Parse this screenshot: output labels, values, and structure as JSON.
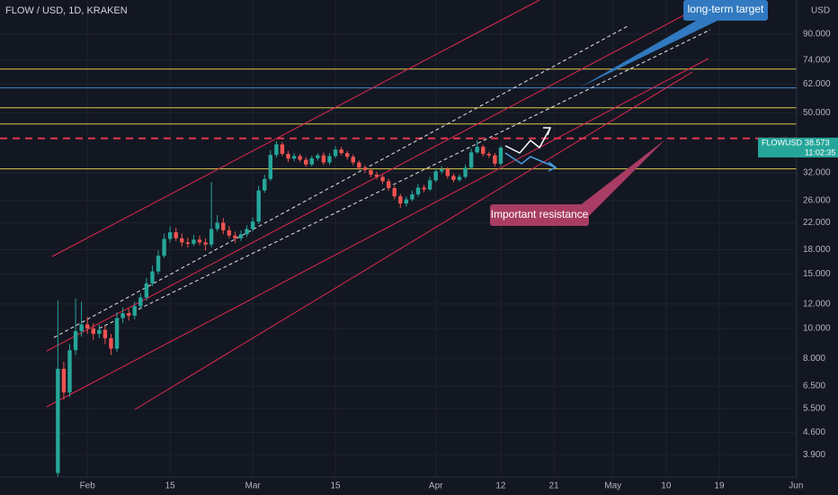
{
  "chart_data": {
    "type": "candlestick",
    "title": "FLOW / USD, 1D, KRAKEN",
    "currency": "USD",
    "symbol": "FLOWUSD",
    "last_price": 38.573,
    "countdown": "11:02:35",
    "log_scale": true,
    "grid": true,
    "up_color": "#26a69a",
    "down_color": "#ef5350",
    "xlim": [
      17.2,
      152.1
    ],
    "ylim": [
      3.3,
      116
    ],
    "xticks": [
      {
        "value": 32,
        "label": "Feb"
      },
      {
        "value": 46,
        "label": "15"
      },
      {
        "value": 60,
        "label": "Mar"
      },
      {
        "value": 74,
        "label": "15"
      },
      {
        "value": 91,
        "label": "Apr"
      },
      {
        "value": 102,
        "label": "12"
      },
      {
        "value": 111,
        "label": "21"
      },
      {
        "value": 121,
        "label": "May"
      },
      {
        "value": 130,
        "label": "10"
      },
      {
        "value": 139,
        "label": "19"
      },
      {
        "value": 152,
        "label": "Jun"
      }
    ],
    "yticks": [
      {
        "value": 90,
        "label": "90.000"
      },
      {
        "value": 74,
        "label": "74.000"
      },
      {
        "value": 62,
        "label": "62.000"
      },
      {
        "value": 50,
        "label": "50.000"
      },
      {
        "value": 32,
        "label": "32.000"
      },
      {
        "value": 26,
        "label": "26.000"
      },
      {
        "value": 22,
        "label": "22.000"
      },
      {
        "value": 18,
        "label": "18.000"
      },
      {
        "value": 15,
        "label": "15.000"
      },
      {
        "value": 12,
        "label": "12.000"
      },
      {
        "value": 10,
        "label": "10.000"
      },
      {
        "value": 8,
        "label": "8.000"
      },
      {
        "value": 6.5,
        "label": "6.500"
      },
      {
        "value": 5.5,
        "label": "5.500"
      },
      {
        "value": 4.6,
        "label": "4.600"
      },
      {
        "value": 3.9,
        "label": "3.900"
      }
    ],
    "x": [
      27,
      28,
      29,
      30,
      31,
      32,
      33,
      34,
      35,
      36,
      37,
      38,
      39,
      40,
      41,
      42,
      43,
      44,
      45,
      46,
      47,
      48,
      49,
      50,
      51,
      52,
      53,
      54,
      55,
      56,
      57,
      58,
      59,
      60,
      61,
      62,
      63,
      64,
      65,
      66,
      67,
      68,
      69,
      70,
      71,
      72,
      73,
      74,
      75,
      76,
      77,
      78,
      79,
      80,
      81,
      82,
      83,
      84,
      85,
      86,
      87,
      88,
      89,
      90,
      91,
      92,
      93,
      94,
      95,
      96,
      97,
      98,
      99,
      100,
      101,
      102
    ],
    "open": [
      3.4,
      7.4,
      6.2,
      8.5,
      9.8,
      10.3,
      10.0,
      9.6,
      9.9,
      9.3,
      8.6,
      10.8,
      11.2,
      11.0,
      11.8,
      12.6,
      14.0,
      15.3,
      17.2,
      19.5,
      20.5,
      19.6,
      19.0,
      18.8,
      19.4,
      19.0,
      18.7,
      21.0,
      22.0,
      20.8,
      20.0,
      19.6,
      20.2,
      21.0,
      22.2,
      28.0,
      30.5,
      36.5,
      39.5,
      36.8,
      35.5,
      36.2,
      35.2,
      34.0,
      35.6,
      36.4,
      34.5,
      36.2,
      38.0,
      37.0,
      36.0,
      34.5,
      33.2,
      32.6,
      31.5,
      31.0,
      30.0,
      28.5,
      26.8,
      25.4,
      26.2,
      27.2,
      28.6,
      28.2,
      30.2,
      32.3,
      32.8,
      31.2,
      30.3,
      31.0,
      33.2,
      37.2,
      38.8,
      36.8,
      36.4,
      34.2
    ],
    "high": [
      12.3,
      7.8,
      8.9,
      12.5,
      12.2,
      10.9,
      10.4,
      10.3,
      10.2,
      9.6,
      11.3,
      11.7,
      11.6,
      12.2,
      13.0,
      14.6,
      16.0,
      17.9,
      20.3,
      21.4,
      21.2,
      20.3,
      19.7,
      20.1,
      20.0,
      19.6,
      29.8,
      23.3,
      22.8,
      21.5,
      20.6,
      20.8,
      21.6,
      22.9,
      29.0,
      31.5,
      37.8,
      40.5,
      40.2,
      37.6,
      37.0,
      36.8,
      35.9,
      36.3,
      37.0,
      37.2,
      37.0,
      39.0,
      38.8,
      37.6,
      36.6,
      35.0,
      33.8,
      33.0,
      32.2,
      31.5,
      30.6,
      29.0,
      27.3,
      26.8,
      28.0,
      29.4,
      29.2,
      31.0,
      33.0,
      33.6,
      33.3,
      31.8,
      31.6,
      34.0,
      38.2,
      40.8,
      39.4,
      37.4,
      37.0,
      39.0
    ],
    "low": [
      3.3,
      5.9,
      6.0,
      8.2,
      9.4,
      9.6,
      9.2,
      9.3,
      8.9,
      8.2,
      8.4,
      10.4,
      10.6,
      10.7,
      11.5,
      12.3,
      13.7,
      15.0,
      16.9,
      19.0,
      19.2,
      18.4,
      18.3,
      18.5,
      18.6,
      17.9,
      18.3,
      20.6,
      20.2,
      19.6,
      18.9,
      19.2,
      19.8,
      20.6,
      21.8,
      27.5,
      30.0,
      35.8,
      36.2,
      34.6,
      34.8,
      34.6,
      33.4,
      33.5,
      35.0,
      33.9,
      33.9,
      35.7,
      36.4,
      35.3,
      33.8,
      32.6,
      31.9,
      30.9,
      30.4,
      29.4,
      27.9,
      26.2,
      24.6,
      24.8,
      25.8,
      26.7,
      27.6,
      27.9,
      29.8,
      31.7,
      30.6,
      29.7,
      29.9,
      30.6,
      32.8,
      36.8,
      36.1,
      35.7,
      33.5,
      33.6
    ],
    "close": [
      7.4,
      6.2,
      8.5,
      9.8,
      10.3,
      10.0,
      9.6,
      9.9,
      9.3,
      8.6,
      10.8,
      11.2,
      11.0,
      11.8,
      12.6,
      14.0,
      15.3,
      17.2,
      19.5,
      20.5,
      19.6,
      19.0,
      18.8,
      19.4,
      19.0,
      18.7,
      21.0,
      22.0,
      20.8,
      20.0,
      19.6,
      20.2,
      21.0,
      22.2,
      28.0,
      30.5,
      36.5,
      39.5,
      36.8,
      35.5,
      36.2,
      35.2,
      34.0,
      35.6,
      36.4,
      34.5,
      36.2,
      38.0,
      37.0,
      36.0,
      34.5,
      33.2,
      32.6,
      31.5,
      31.0,
      30.0,
      28.5,
      26.8,
      25.4,
      26.2,
      27.2,
      28.6,
      28.2,
      30.2,
      32.3,
      32.8,
      31.2,
      30.3,
      31.0,
      33.2,
      37.2,
      38.8,
      36.8,
      36.4,
      34.2,
      38.573
    ],
    "levels": [
      {
        "value": 69.3,
        "color": "#d9c84a",
        "dashed": false
      },
      {
        "value": 60.2,
        "color": "#4a86c8",
        "dashed": false
      },
      {
        "value": 51.9,
        "color": "#d9c84a",
        "dashed": false
      },
      {
        "value": 46,
        "color": "#d9c84a",
        "dashed": false
      },
      {
        "value": 41.3,
        "color": "#e0374f",
        "dashed": true
      },
      {
        "value": 32.9,
        "color": "#d9c84a",
        "dashed": false
      }
    ],
    "annotations": [
      "long-term target",
      "Important resistance"
    ]
  }
}
